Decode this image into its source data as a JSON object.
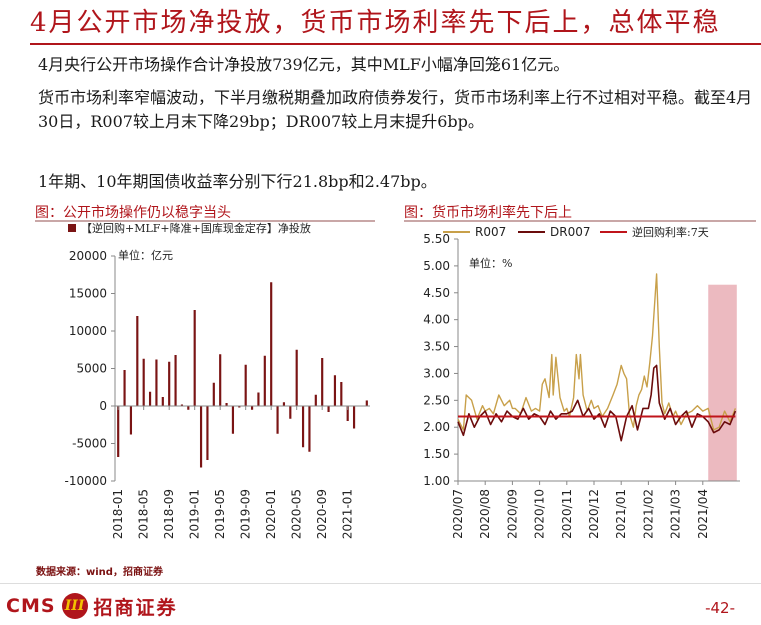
{
  "title": "4月公开市场净投放，货币市场利率先下后上，总体平稳",
  "paragraphs": [
    "4月央行公开市场操作合计净投放739亿元，其中MLF小幅净回笼61亿元。",
    "货币市场利率窄幅波动，下半月缴税期叠加政府债券发行，货币市场利率上行不过相对平稳。截至4月30日，R007较上月末下降29bp；DR007较上月末提升6bp。",
    "1年期、10年期国债收益率分别下行21.8bp和2.47bp。"
  ],
  "colors": {
    "accent": "#b0151b",
    "bar": "#7a1414",
    "r007": "#c8a04a",
    "dr007": "#6b0c0c",
    "repo": "#c0141b",
    "shade": "#e6a3ab"
  },
  "chart_data": [
    {
      "type": "bar",
      "figure_title": "图：公开市场操作仍以稳字当头",
      "legend": "【逆回购+MLF+降准+国库现金定存】净投放",
      "unit_label": "单位：亿元",
      "ylim": [
        -10000,
        20000
      ],
      "yticks": [
        -10000,
        -5000,
        0,
        5000,
        10000,
        15000,
        20000
      ],
      "xtick_labels": [
        "2018-01",
        "2018-05",
        "2018-09",
        "2019-01",
        "2019-05",
        "2019-09",
        "2020-01",
        "2020-05",
        "2020-09",
        "2021-01"
      ],
      "categories": [
        "2018-01",
        "2018-02",
        "2018-03",
        "2018-04",
        "2018-05",
        "2018-06",
        "2018-07",
        "2018-08",
        "2018-09",
        "2018-10",
        "2018-11",
        "2018-12",
        "2019-01",
        "2019-02",
        "2019-03",
        "2019-04",
        "2019-05",
        "2019-06",
        "2019-07",
        "2019-08",
        "2019-09",
        "2019-10",
        "2019-11",
        "2019-12",
        "2020-01",
        "2020-02",
        "2020-03",
        "2020-04",
        "2020-05",
        "2020-06",
        "2020-07",
        "2020-08",
        "2020-09",
        "2020-10",
        "2020-11",
        "2020-12",
        "2021-01",
        "2021-02",
        "2021-03",
        "2021-04"
      ],
      "values": [
        -6800,
        4800,
        -3800,
        12000,
        6300,
        1900,
        6200,
        1200,
        5900,
        6800,
        200,
        -500,
        12800,
        -8200,
        -7200,
        3100,
        6900,
        400,
        -3700,
        -200,
        5500,
        -500,
        1800,
        6700,
        16500,
        -3700,
        500,
        -1700,
        7500,
        -5500,
        -6100,
        1500,
        6400,
        -800,
        4100,
        3200,
        -2000,
        -3000,
        0,
        739
      ]
    },
    {
      "type": "line",
      "figure_title": "图：货币市场利率先下后上",
      "unit_label": "单位：%",
      "ylim": [
        1.0,
        5.5
      ],
      "yticks": [
        1.0,
        1.5,
        2.0,
        2.5,
        3.0,
        3.5,
        4.0,
        4.5,
        5.0,
        5.5
      ],
      "xtick_labels": [
        "2020/07",
        "2020/08",
        "2020/09",
        "2020/10",
        "2020/11",
        "2020/12",
        "2021/01",
        "2021/02",
        "2021/03",
        "2021/04"
      ],
      "x_range": [
        0,
        10
      ],
      "highlight_range": [
        9.2,
        10.25
      ],
      "highlight_top": 4.65,
      "series": [
        {
          "name": "R007",
          "x": [
            0,
            0.2,
            0.3,
            0.5,
            0.7,
            0.9,
            1,
            1.15,
            1.3,
            1.5,
            1.7,
            1.9,
            2,
            2.1,
            2.3,
            2.5,
            2.7,
            2.85,
            3,
            3.1,
            3.2,
            3.35,
            3.45,
            3.5,
            3.6,
            3.75,
            3.9,
            4,
            4.1,
            4.25,
            4.35,
            4.45,
            4.5,
            4.6,
            4.75,
            4.9,
            5,
            5.15,
            5.3,
            5.5,
            5.7,
            5.85,
            6,
            6.1,
            6.2,
            6.3,
            6.45,
            6.55,
            6.65,
            6.75,
            6.85,
            6.95,
            7.05,
            7.15,
            7.3,
            7.4,
            7.5,
            7.6,
            7.75,
            7.9,
            8,
            8.2,
            8.4,
            8.6,
            8.8,
            9,
            9.2,
            9.4,
            9.6,
            9.8,
            10,
            10.2
          ],
          "values": [
            2.15,
            1.95,
            2.6,
            2.5,
            2.15,
            2.4,
            2.3,
            2.35,
            2.25,
            2.6,
            2.4,
            2.5,
            2.35,
            2.35,
            2.25,
            2.55,
            2.3,
            2.35,
            2.3,
            2.8,
            2.9,
            2.55,
            3.35,
            2.6,
            3.3,
            2.55,
            2.3,
            2.35,
            2.2,
            2.55,
            3.35,
            2.9,
            3.35,
            2.6,
            2.3,
            2.5,
            2.35,
            2.4,
            2.2,
            2.35,
            2.6,
            2.8,
            3.15,
            3.0,
            2.9,
            2.25,
            2.0,
            2.4,
            2.6,
            2.7,
            2.95,
            2.75,
            3.2,
            3.7,
            4.85,
            3.5,
            2.45,
            2.25,
            2.45,
            2.2,
            2.3,
            2.05,
            2.25,
            2.3,
            2.4,
            2.3,
            2.35,
            1.95,
            2.0,
            2.3,
            2.1,
            2.35
          ]
        },
        {
          "name": "DR007",
          "x": [
            0,
            0.2,
            0.4,
            0.6,
            0.8,
            1,
            1.2,
            1.4,
            1.6,
            1.8,
            2,
            2.2,
            2.4,
            2.6,
            2.8,
            3,
            3.2,
            3.4,
            3.6,
            3.8,
            4,
            4.2,
            4.4,
            4.6,
            4.8,
            5,
            5.2,
            5.4,
            5.6,
            5.8,
            6,
            6.2,
            6.4,
            6.6,
            6.8,
            7,
            7.1,
            7.2,
            7.3,
            7.4,
            7.5,
            7.6,
            7.8,
            8,
            8.2,
            8.4,
            8.6,
            8.8,
            9,
            9.2,
            9.4,
            9.6,
            9.8,
            10,
            10.2
          ],
          "values": [
            2.1,
            1.85,
            2.25,
            2.0,
            2.2,
            2.3,
            2.05,
            2.25,
            2.1,
            2.3,
            2.2,
            2.15,
            2.35,
            2.15,
            2.25,
            2.2,
            2.05,
            2.3,
            2.15,
            2.25,
            2.25,
            2.3,
            2.5,
            2.2,
            2.35,
            2.15,
            2.25,
            2.0,
            2.3,
            2.2,
            1.75,
            2.2,
            2.4,
            1.95,
            2.35,
            2.35,
            2.6,
            3.1,
            3.15,
            2.45,
            2.3,
            2.15,
            2.35,
            2.05,
            2.2,
            2.3,
            2.0,
            2.25,
            2.2,
            2.1,
            1.9,
            1.95,
            2.1,
            2.05,
            2.3
          ]
        },
        {
          "name": "逆回购利率:7天",
          "x": [
            0,
            10.2
          ],
          "values": [
            2.2,
            2.2
          ]
        }
      ]
    }
  ],
  "source": "数据来源：wind，招商证券",
  "logo": {
    "cms": "CMS",
    "mark": "III",
    "name": "招商证券"
  },
  "page_number": "-42-"
}
